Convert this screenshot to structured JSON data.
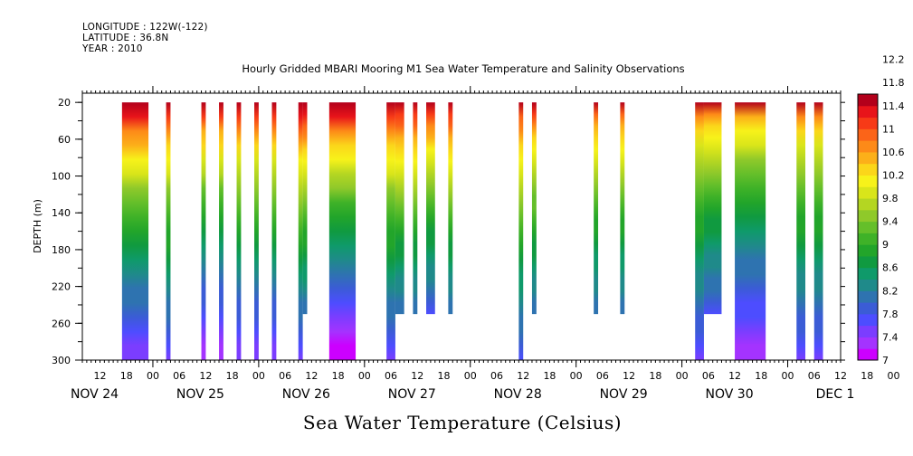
{
  "header": {
    "longitude": "LONGITUDE : 122W(-122)",
    "latitude": "LATITUDE : 36.8N",
    "year": "YEAR : 2010"
  },
  "chart_data": {
    "type": "heatmap",
    "title": "Hourly Gridded MBARI Mooring M1 Sea Water Temperature and Salinity Observations",
    "xlabel": "Sea Water Temperature (Celsius)",
    "ylabel": "DEPTH (m)",
    "ylim": [
      300,
      10
    ],
    "y_inverted": true,
    "y_ticks": [
      20,
      60,
      100,
      140,
      180,
      220,
      260,
      300
    ],
    "x_range_hours": [
      "NOV 24 08",
      "DEC 1 12"
    ],
    "x_hour_ticks": [
      "12",
      "18",
      "00",
      "06",
      "12",
      "18",
      "00",
      "06",
      "12",
      "18",
      "00",
      "06",
      "12",
      "18",
      "00",
      "06",
      "12",
      "18",
      "00",
      "06",
      "12",
      "18",
      "00",
      "06",
      "12",
      "18",
      "00",
      "06",
      "12",
      "18",
      "00",
      "06"
    ],
    "x_day_labels": [
      "NOV 24",
      "NOV 25",
      "NOV 26",
      "NOV 27",
      "NOV 28",
      "NOV 29",
      "NOV 30",
      "DEC 1"
    ],
    "colorbar": {
      "levels": [
        7,
        7.4,
        7.8,
        8.2,
        8.6,
        9,
        9.4,
        9.8,
        10.2,
        10.6,
        11,
        11.4,
        11.8,
        12.2
      ],
      "colors": [
        "#cc00ff",
        "#a433ff",
        "#7b3dff",
        "#4d4dff",
        "#3b5cd6",
        "#2e73b0",
        "#1f8a8a",
        "#0f9a6a",
        "#109a40",
        "#22a52a",
        "#3fb228",
        "#65bf2a",
        "#8fc92a",
        "#b4d622",
        "#d9e51a",
        "#f7f21a",
        "#fbd61a",
        "#fcb019",
        "#fd8a18",
        "#fb6418",
        "#f73a17",
        "#e8141a",
        "#b3001b"
      ]
    },
    "columns": [
      {
        "start": "NOV 24 17",
        "end": "NOV 24 23",
        "max_depth": 300,
        "surface_temp": 12.2,
        "bottom_temp": 7.4
      },
      {
        "start": "NOV 25 03",
        "end": "NOV 25 04",
        "max_depth": 300,
        "surface_temp": 12.0,
        "bottom_temp": 7.6
      },
      {
        "start": "NOV 25 11",
        "end": "NOV 25 12",
        "max_depth": 300,
        "surface_temp": 12.0,
        "bottom_temp": 7.2
      },
      {
        "start": "NOV 25 15",
        "end": "NOV 25 16",
        "max_depth": 300,
        "surface_temp": 12.0,
        "bottom_temp": 7.2
      },
      {
        "start": "NOV 25 19",
        "end": "NOV 25 20",
        "max_depth": 300,
        "surface_temp": 12.0,
        "bottom_temp": 7.4
      },
      {
        "start": "NOV 25 23",
        "end": "NOV 26 00",
        "max_depth": 300,
        "surface_temp": 12.0,
        "bottom_temp": 7.4
      },
      {
        "start": "NOV 26 03",
        "end": "NOV 26 04",
        "max_depth": 300,
        "surface_temp": 12.0,
        "bottom_temp": 7.4
      },
      {
        "start": "NOV 26 09",
        "end": "NOV 26 10",
        "max_depth": 300,
        "surface_temp": 12.2,
        "bottom_temp": 7.6
      },
      {
        "start": "NOV 26 10",
        "end": "NOV 26 11",
        "max_depth": 250,
        "surface_temp": 12.2,
        "bottom_temp": 8.0
      },
      {
        "start": "NOV 26 16",
        "end": "NOV 26 22",
        "max_depth": 300,
        "surface_temp": 12.4,
        "bottom_temp": 7.0
      },
      {
        "start": "NOV 27 05",
        "end": "NOV 27 07",
        "max_depth": 300,
        "surface_temp": 12.0,
        "bottom_temp": 7.6
      },
      {
        "start": "NOV 27 07",
        "end": "NOV 27 09",
        "max_depth": 250,
        "surface_temp": 12.0,
        "bottom_temp": 8.0
      },
      {
        "start": "NOV 27 11",
        "end": "NOV 27 12",
        "max_depth": 250,
        "surface_temp": 12.0,
        "bottom_temp": 8.0
      },
      {
        "start": "NOV 27 14",
        "end": "NOV 27 16",
        "max_depth": 250,
        "surface_temp": 12.0,
        "bottom_temp": 7.8
      },
      {
        "start": "NOV 27 19",
        "end": "NOV 27 20",
        "max_depth": 250,
        "surface_temp": 12.0,
        "bottom_temp": 8.0
      },
      {
        "start": "NOV 28 11",
        "end": "NOV 28 12",
        "max_depth": 300,
        "surface_temp": 11.8,
        "bottom_temp": 7.8
      },
      {
        "start": "NOV 28 14",
        "end": "NOV 28 15",
        "max_depth": 250,
        "surface_temp": 11.8,
        "bottom_temp": 8.0
      },
      {
        "start": "NOV 29 04",
        "end": "NOV 29 05",
        "max_depth": 250,
        "surface_temp": 11.6,
        "bottom_temp": 8.0
      },
      {
        "start": "NOV 29 10",
        "end": "NOV 29 11",
        "max_depth": 250,
        "surface_temp": 11.6,
        "bottom_temp": 8.0
      },
      {
        "start": "NOV 30 03",
        "end": "NOV 30 05",
        "max_depth": 300,
        "surface_temp": 11.4,
        "bottom_temp": 7.6
      },
      {
        "start": "NOV 30 05",
        "end": "NOV 30 09",
        "max_depth": 250,
        "surface_temp": 11.4,
        "bottom_temp": 7.8
      },
      {
        "start": "NOV 30 12",
        "end": "NOV 30 19",
        "max_depth": 300,
        "surface_temp": 11.4,
        "bottom_temp": 7.2
      },
      {
        "start": "DEC 1 02",
        "end": "DEC 1 04",
        "max_depth": 300,
        "surface_temp": 11.4,
        "bottom_temp": 7.6
      },
      {
        "start": "DEC 1 06",
        "end": "DEC 1 08",
        "max_depth": 300,
        "surface_temp": 11.4,
        "bottom_temp": 7.6
      }
    ]
  }
}
